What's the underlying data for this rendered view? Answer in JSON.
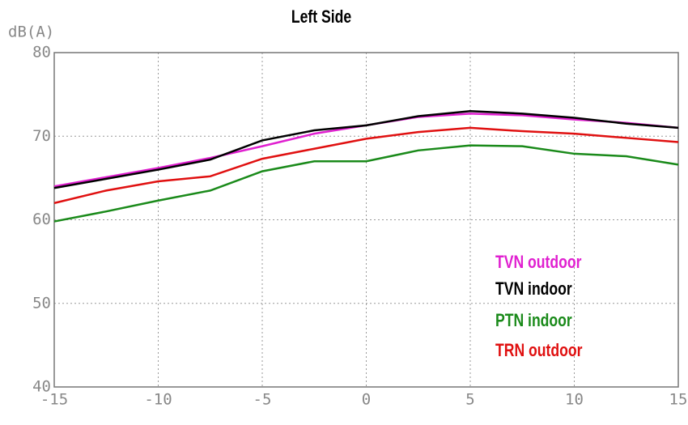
{
  "chart_data": {
    "type": "line",
    "title": "Left Side",
    "y_label": "dB(A)",
    "x": [
      -15,
      -12.5,
      -10,
      -7.5,
      -5,
      -2.5,
      0,
      2.5,
      5,
      7.5,
      10,
      12.5,
      15
    ],
    "series": [
      {
        "name": "TVN outdoor",
        "color": "#e020d0",
        "values": [
          64,
          65.1,
          66.2,
          67.4,
          68.8,
          70.3,
          71.3,
          72.3,
          72.7,
          72.5,
          72,
          71.6,
          71
        ]
      },
      {
        "name": "TVN indoor",
        "color": "#000000",
        "values": [
          63.8,
          64.9,
          66,
          67.2,
          69.5,
          70.7,
          71.3,
          72.4,
          73,
          72.7,
          72.2,
          71.5,
          71
        ]
      },
      {
        "name": "PTN indoor",
        "color": "#1a8a1a",
        "values": [
          59.8,
          61,
          62.3,
          63.5,
          65.8,
          67,
          67,
          68.3,
          68.9,
          68.8,
          67.9,
          67.6,
          66.6
        ]
      },
      {
        "name": "TRN outdoor",
        "color": "#e01010",
        "values": [
          62,
          63.5,
          64.6,
          65.2,
          67.3,
          68.5,
          69.7,
          70.5,
          71,
          70.6,
          70.3,
          69.8,
          69.3
        ]
      }
    ],
    "xlim": [
      -15,
      15
    ],
    "xticks": [
      -15,
      -10,
      -5,
      0,
      5,
      10,
      15
    ],
    "ylim": [
      40,
      80
    ],
    "yticks": [
      40,
      50,
      60,
      70,
      80
    ],
    "grid": true
  }
}
